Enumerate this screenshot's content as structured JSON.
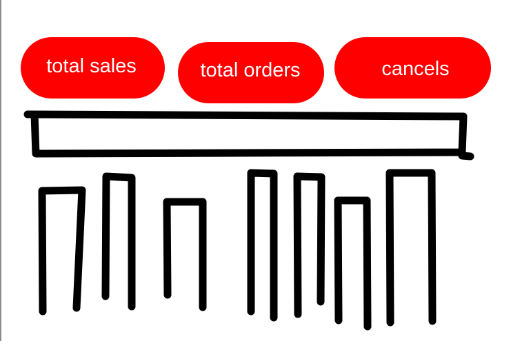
{
  "buttons": {
    "total_sales": "total sales",
    "total_orders": "total orders",
    "cancels": "cancels"
  },
  "colors": {
    "button_fill": "#ff0000",
    "button_text": "#ffffff",
    "stroke": "#000000"
  }
}
